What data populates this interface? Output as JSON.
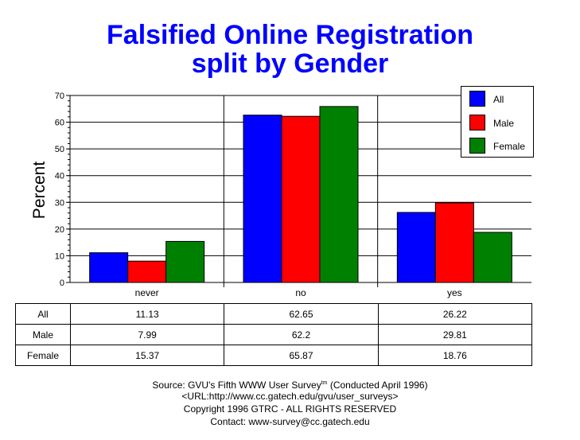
{
  "title_line1": "Falsified Online Registration",
  "title_line2": "split by Gender",
  "chart_data": {
    "type": "bar",
    "categories": [
      "never",
      "no",
      "yes"
    ],
    "series": [
      {
        "name": "All",
        "values": [
          11.13,
          62.65,
          26.22
        ],
        "color": "#0000ff"
      },
      {
        "name": "Male",
        "values": [
          7.99,
          62.2,
          29.81
        ],
        "color": "#ff0000"
      },
      {
        "name": "Female",
        "values": [
          15.37,
          65.87,
          18.76
        ],
        "color": "#008000"
      }
    ],
    "ylabel": "Percent",
    "ylim": [
      0,
      70
    ],
    "yticks": [
      0,
      10,
      20,
      30,
      40,
      50,
      60,
      70
    ],
    "grid": true,
    "legend_position": "top-right"
  },
  "table": {
    "rows": [
      {
        "label": "All",
        "values": [
          "11.13",
          "62.65",
          "26.22"
        ]
      },
      {
        "label": "Male",
        "values": [
          "7.99",
          "62.2",
          "29.81"
        ]
      },
      {
        "label": "Female",
        "values": [
          "15.37",
          "65.87",
          "18.76"
        ]
      }
    ]
  },
  "footer": {
    "source_pre": "Source: GVU's Fifth WWW User Survey",
    "source_sup": "tm",
    "source_post": "  (Conducted April 1996)",
    "url": "<URL:http://www.cc.gatech.edu/gvu/user_surveys>",
    "copyright": "Copyright 1996 GTRC -  ALL RIGHTS RESERVED",
    "contact": "Contact: www-survey@cc.gatech.edu"
  }
}
